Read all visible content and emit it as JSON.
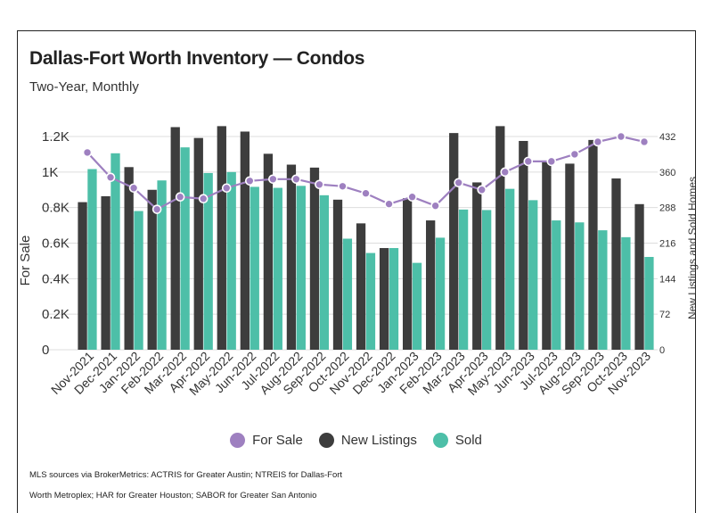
{
  "header": {
    "title": "Dallas-Fort Worth Inventory — Condos",
    "subtitle": "Two-Year, Monthly"
  },
  "legend": [
    {
      "label": "For Sale",
      "color": "#9e80c0",
      "shape": "circle"
    },
    {
      "label": "New Listings",
      "color": "#3d3d3d",
      "shape": "circle"
    },
    {
      "label": "Sold",
      "color": "#4dbfa8",
      "shape": "circle"
    }
  ],
  "footnote": {
    "line1": "MLS sources via BrokerMetrics: ACTRIS for Greater Austin; NTREIS for Dallas-Fort",
    "line2": "Worth Metroplex; HAR for Greater Houston; SABOR for Greater San Antonio"
  },
  "chart_data": {
    "type": "bar",
    "categories": [
      "Nov-2021",
      "Dec-2021",
      "Jan-2022",
      "Feb-2022",
      "Mar-2022",
      "Apr-2022",
      "May-2022",
      "Jun-2022",
      "Jul-2022",
      "Aug-2022",
      "Sep-2022",
      "Oct-2022",
      "Nov-2022",
      "Dec-2022",
      "Jan-2023",
      "Feb-2023",
      "Mar-2023",
      "Apr-2023",
      "May-2023",
      "Jun-2023",
      "Jul-2023",
      "Aug-2023",
      "Sep-2023",
      "Oct-2023",
      "Nov-2023"
    ],
    "ylabel": "For Sale",
    "y2label": "New Listings and Sold Homes",
    "ylim": [
      0,
      1200
    ],
    "y2lim": [
      0,
      432
    ],
    "yticks": [
      "0",
      "0.2K",
      "0.4K",
      "0.6K",
      "0.8K",
      "1K",
      "1.2K"
    ],
    "y2ticks": [
      "0",
      "72",
      "144",
      "216",
      "288",
      "360",
      "432"
    ],
    "grid": true,
    "legend_position": "bottom",
    "series": [
      {
        "name": "New Listings",
        "type": "bar",
        "axis": "right",
        "color": "#3d3d3d",
        "values": [
          299,
          311,
          370,
          324,
          451,
          429,
          453,
          442,
          397,
          375,
          369,
          304,
          256,
          206,
          307,
          262,
          439,
          339,
          453,
          423,
          383,
          377,
          425,
          347,
          295
        ]
      },
      {
        "name": "Sold",
        "type": "bar",
        "axis": "right",
        "color": "#4dbfa8",
        "values": [
          366,
          398,
          281,
          343,
          410,
          358,
          360,
          330,
          328,
          332,
          313,
          225,
          196,
          206,
          176,
          227,
          284,
          283,
          326,
          303,
          262,
          258,
          242,
          228,
          188
        ]
      },
      {
        "name": "For Sale",
        "type": "line",
        "axis": "left",
        "color": "#9e80c0",
        "values": [
          1110,
          970,
          910,
          790,
          860,
          850,
          910,
          950,
          960,
          960,
          930,
          920,
          880,
          820,
          860,
          810,
          940,
          900,
          1000,
          1060,
          1060,
          1100,
          1170,
          1200,
          1170
        ]
      }
    ]
  }
}
